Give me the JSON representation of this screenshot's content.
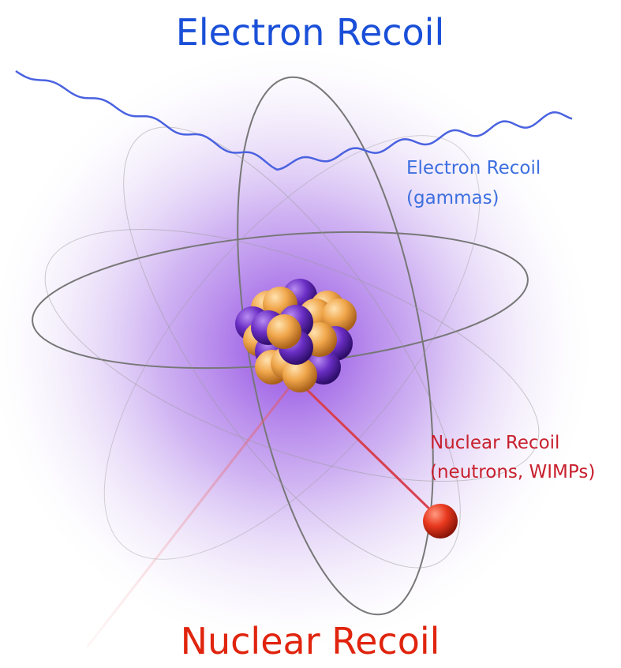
{
  "header": {
    "title": "Electron Recoil"
  },
  "labels": {
    "electron": [
      "Electron Recoil",
      "(gammas)"
    ],
    "nuclear": [
      "Nuclear Recoil",
      "(neutrons, WIMPs)"
    ]
  },
  "footer": {
    "title": "Nuclear Recoil"
  }
}
